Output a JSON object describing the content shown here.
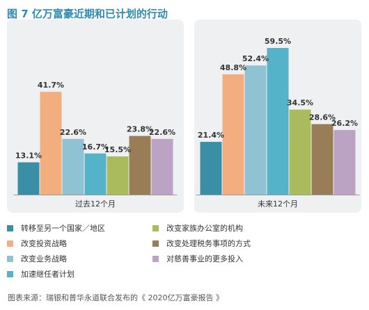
{
  "title": "图 7 亿万富豪近期和已计划的行动",
  "source": "图表来源：瑞银和普华永道联合发布的《 2020亿万富豪报告 》",
  "chart_data": {
    "type": "bar",
    "categories": [
      "过去12个月",
      "未来12个月"
    ],
    "series": [
      {
        "name": "转移至另一个国家／地区",
        "color": "#3a8ea6",
        "values": [
          13.1,
          21.4
        ]
      },
      {
        "name": "改变投资战略",
        "color": "#f2ae7e",
        "values": [
          41.7,
          48.8
        ]
      },
      {
        "name": "改变业务战略",
        "color": "#8fc2d3",
        "values": [
          22.6,
          52.4
        ]
      },
      {
        "name": "加速继任者计划",
        "color": "#54b3c8",
        "values": [
          16.7,
          59.5
        ]
      },
      {
        "name": "改变家族办公室的机构",
        "color": "#a9bb5c",
        "values": [
          15.5,
          34.5
        ]
      },
      {
        "name": "改变处理税务事项的方式",
        "color": "#987d56",
        "values": [
          23.8,
          28.6
        ]
      },
      {
        "name": "对慈善事业的更多投入",
        "color": "#bba3c4",
        "values": [
          22.6,
          26.2
        ]
      }
    ],
    "value_labels": [
      [
        "13.1%",
        "41.7%",
        "22.6%",
        "16.7%",
        "15.5%",
        "23.8%",
        "22.6%"
      ],
      [
        "21.4%",
        "48.8%",
        "52.4%",
        "59.5%",
        "34.5%",
        "28.6%",
        "26.2%"
      ]
    ],
    "ylim": [
      0,
      65
    ],
    "grid": false,
    "legend_position": "bottom"
  },
  "legend_order": [
    0,
    4,
    1,
    5,
    2,
    6,
    3
  ]
}
